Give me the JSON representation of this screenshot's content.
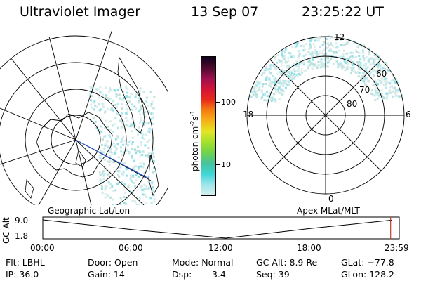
{
  "header": {
    "title": "Ultraviolet Imager",
    "date": "13 Sep 07",
    "time": "23:25:22 UT"
  },
  "left_panel": {
    "caption": "Geographic Lat/Lon"
  },
  "right_panel": {
    "caption": "Apex MLat/MLT",
    "mlt_labels": {
      "top": "12",
      "left": "18",
      "right": "6",
      "bottom": "0"
    },
    "lat_labels": [
      "60",
      "70",
      "80"
    ]
  },
  "colorbar": {
    "unit_text": "photon cm",
    "unit_exp1": "-2",
    "unit_mid": "s",
    "unit_exp2": "-1",
    "ticks": [
      "100",
      "10"
    ],
    "colors": [
      "#d8f0ee",
      "#9ee6ea",
      "#3fd6d8",
      "#45c39c",
      "#70d24b",
      "#a3e02b",
      "#e5e424",
      "#f6b216",
      "#f47e10",
      "#e8291a",
      "#d31338",
      "#9a1050",
      "#4a0a2e",
      "#12001a"
    ]
  },
  "altitude_plot": {
    "ylabel": "GC Alt",
    "yticks": [
      "9.0",
      "1.8"
    ],
    "xticks": [
      "00:00",
      "06:00",
      "12:00",
      "18:00",
      "23:59"
    ],
    "profile": [
      {
        "t": 0.0,
        "alt": 9.0
      },
      {
        "t": 6.0,
        "alt": 5.2
      },
      {
        "t": 12.3,
        "alt": 1.8
      },
      {
        "t": 18.0,
        "alt": 5.6
      },
      {
        "t": 23.5,
        "alt": 8.9
      }
    ],
    "current_time": 23.42,
    "marker_color": "#c0392b"
  },
  "info": {
    "flt": "Flt: LBHL",
    "ip": "IP: 36.0",
    "door": "Door: Open",
    "gain": "Gain: 14",
    "mode": "Mode: Normal",
    "dsp_label": "Dsp:",
    "dsp_value": "3.4",
    "gc_alt": "GC Alt: 8.9 Re",
    "seq": "Seq: 39",
    "glat": "GLat: −77.8",
    "glon": "GLon: 128.2"
  }
}
